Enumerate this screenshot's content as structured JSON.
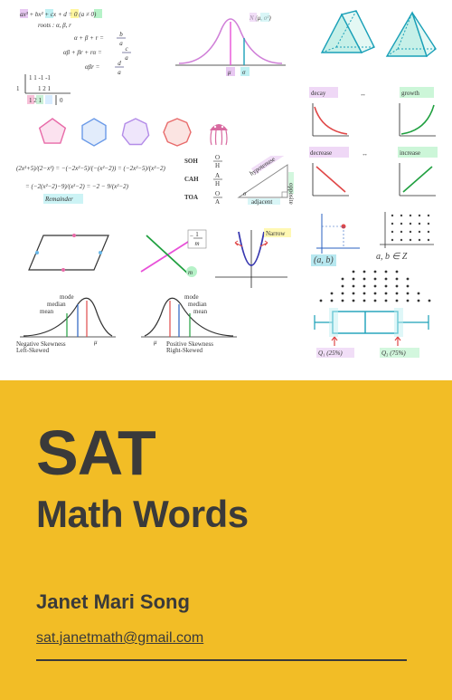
{
  "cover": {
    "title_line1": "SAT",
    "title_line2": "Math Words",
    "author": "Janet Mari Song",
    "email": "sat.janetmath@gmail.com",
    "bg_color": "#f2bd26",
    "text_color": "#3a3a3a",
    "rule_color": "#3a3a3a"
  },
  "collage": {
    "cubic": {
      "eq": "ax³ + bx² + cx + d = 0   (a ≠ 0)",
      "roots_label": "roots : α, β, r",
      "vieta1_lhs": "α + β + r =",
      "vieta1_rhs_num": "b",
      "vieta1_rhs_den": "a",
      "vieta2_lhs": "αβ + βr + rα =",
      "vieta2_rhs_num": "c",
      "vieta2_rhs_den": "a",
      "vieta3_lhs": "αβr =",
      "vieta3_rhs_num": "d",
      "vieta3_rhs_den": "a",
      "highlight_colors": [
        "#f7b0d0",
        "#b7e8f0",
        "#f0e69a",
        "#d6c2f0"
      ],
      "text_color": "#2a2a6a"
    },
    "syndiv": {
      "top_row": [
        "1",
        "1",
        "-1",
        "-1"
      ],
      "mid_row": [
        "",
        "1",
        "2",
        "1"
      ],
      "bot_row": [
        "1",
        "2",
        "1",
        "0"
      ],
      "divisor": "1",
      "box_color": "#d8ecff",
      "line_color": "#222"
    },
    "normal": {
      "label": "N (μ, σ²)",
      "mu": "μ",
      "sigma": "σ",
      "curve_color": "#d080d8",
      "mu_line_color": "#e850d8",
      "sigma_line_color": "#1aa0b8",
      "hl_mu": "#f7b0d0",
      "hl_sigma": "#b7e8f0"
    },
    "solids": {
      "prism_stroke": "#1aa0b8",
      "prism_face": "#c6f0e8",
      "pyramid_stroke": "#1aa0b8",
      "pyramid_face": "#c6f0e8"
    },
    "polygons": {
      "shapes": [
        {
          "n": 5,
          "stroke": "#e86aa8",
          "fill": "#fbe2ef"
        },
        {
          "n": 6,
          "stroke": "#6a9ae8",
          "fill": "#e2ecfb"
        },
        {
          "n": 7,
          "stroke": "#b38be8",
          "fill": "#efe6fb"
        },
        {
          "n": 8,
          "stroke": "#e86a6a",
          "fill": "#fbe4e2"
        }
      ],
      "jelly_color": "#d86aa0"
    },
    "decay_growth": {
      "decay_label": "decay",
      "growth_label": "growth",
      "arrow": "↔",
      "decay_color": "#e04848",
      "growth_color": "#20a040",
      "hl_decay": "#f7b0c0",
      "hl_growth": "#b6f2c8"
    },
    "decrease_increase": {
      "decrease_label": "decrease",
      "increase_label": "increase",
      "arrow": "↔",
      "decrease_color": "#e04848",
      "increase_color": "#20a040"
    },
    "fraction_simplify": {
      "line": "(2x²+5)/(2−x²) = −(−2x²−5)/(−(x²−2)) = (−2x²−5)/(x²−2)",
      "step2": "= (−2(x²−2)−9)/(x²−2) = −2 − 9/(x²−2)",
      "remainder_label": "Remainder",
      "hl": "#b7e8f0",
      "text_color": "#2a2a2a"
    },
    "sohcahtoa": {
      "rows": [
        {
          "name": "SOH",
          "ratio_top": "O",
          "ratio_bot": "H"
        },
        {
          "name": "CAH",
          "ratio_top": "A",
          "ratio_bot": "H"
        },
        {
          "name": "TOA",
          "ratio_top": "O",
          "ratio_bot": "A"
        }
      ],
      "color_o": "#20a040",
      "color_a": "#e04848",
      "color_h": "#2a2a2a"
    },
    "right_triangle": {
      "hyp_label": "hypotenuse",
      "opp_label": "opposite",
      "adj_label": "adjacent",
      "sigma_label": "σ",
      "stroke": "#888",
      "hl_hyp": "#f7b0d0",
      "hl_opp": "#b6f2c8",
      "hl_adj": "#b7e8f0"
    },
    "point_ab": {
      "label": "(a, b)",
      "dot_color": "#e04848",
      "axis_color": "#2860c0",
      "hl": "#b7e8f0"
    },
    "integers": {
      "label": "a, b ∈ Z",
      "text_color": "#2a2a2a",
      "dot_color": "#444"
    },
    "parallelogram": {
      "stroke": "#333",
      "tick_color1": "#e86aa8",
      "tick_color2": "#6ab8e8"
    },
    "intersecting_lines": {
      "line1_color": "#e850d8",
      "line2_color": "#20a040",
      "slope_box_num": "1",
      "slope_box_den": "m",
      "slope_box_neg": "−",
      "m_label": "m",
      "hl": "#b6f2c8"
    },
    "parabola": {
      "curve_color": "#3838b0",
      "narrow_label": "Narrow",
      "arrow_color": "#e04848",
      "hl": "#f7e0a0"
    },
    "dot_parabola": {
      "dot_color": "#333",
      "rows": 5,
      "cols": 9
    },
    "boxplot": {
      "box_stroke": "#1aa0b8",
      "whisker_color": "#1aa0b8",
      "q1_label": "Q₁ (25%)",
      "q3_label": "Q₃ (75%)",
      "q1_color": "#e04848",
      "q3_color": "#e04848",
      "hl_q1": "#d6c2f0",
      "hl_q3": "#b6f2c8"
    },
    "skewness": {
      "left": {
        "title": "Negative Skewness",
        "sub": "Left-Skewed",
        "mode": "mode",
        "median": "median",
        "mean": "mean",
        "mu": "μ",
        "curve_color": "#333",
        "mode_color": "#e04848",
        "median_color": "#2860c0",
        "mean_color": "#20a040"
      },
      "right": {
        "title": "Positive Skewness",
        "sub": "Right-Skewed",
        "mode": "mode",
        "median": "median",
        "mean": "mean",
        "mu": "μ"
      }
    }
  }
}
